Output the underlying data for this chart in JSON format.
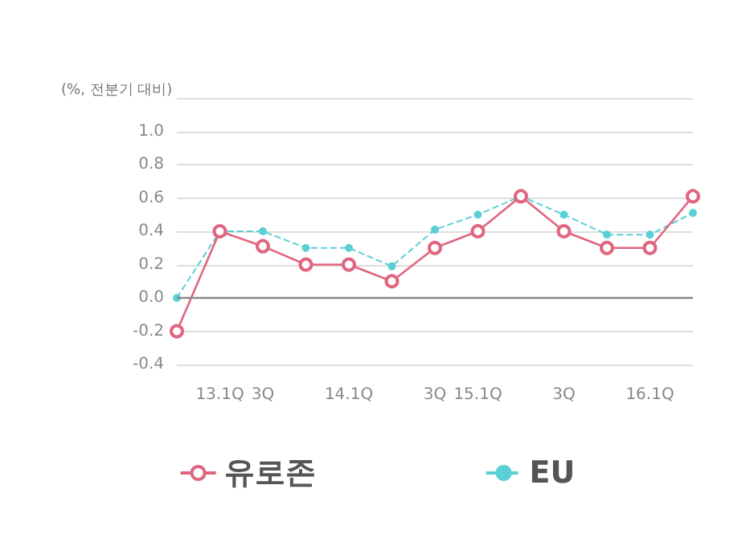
{
  "chart_data": {
    "type": "line",
    "ylabel": "(%, 전분기 대비)",
    "categories": [
      null,
      "13.1Q",
      "3Q",
      null,
      "14.1Q",
      null,
      "3Q",
      "15.1Q",
      null,
      "3Q",
      null,
      "16.1Q",
      null
    ],
    "series": [
      {
        "name": "유로존",
        "color": "#e0667f",
        "marker": "circle",
        "line_style": "solid",
        "values": [
          -0.2,
          0.4,
          0.31,
          0.2,
          0.2,
          0.1,
          0.3,
          0.4,
          0.61,
          0.4,
          0.3,
          0.3,
          0.61
        ]
      },
      {
        "name": "EU",
        "color": "#5bcfd6",
        "marker": "circle",
        "line_style": "dashed",
        "values": [
          0.0,
          0.4,
          0.4,
          0.3,
          0.3,
          0.19,
          0.41,
          0.5,
          0.61,
          0.5,
          0.38,
          0.38,
          0.51
        ]
      }
    ],
    "ylim": [
      -0.4,
      1.2
    ],
    "yticks": [
      -0.4,
      -0.2,
      {
        "value": 0,
        "label": "0.0"
      },
      0.2,
      0.4,
      0.6,
      0.8,
      {
        "value": 1,
        "label": "1.0"
      },
      {
        "value": 1.2,
        "label": null
      }
    ],
    "ref_lines": [
      {
        "axis": "y",
        "value": 0,
        "label": null,
        "color": "#888888"
      }
    ],
    "grid": "y",
    "legend": "bottom"
  }
}
